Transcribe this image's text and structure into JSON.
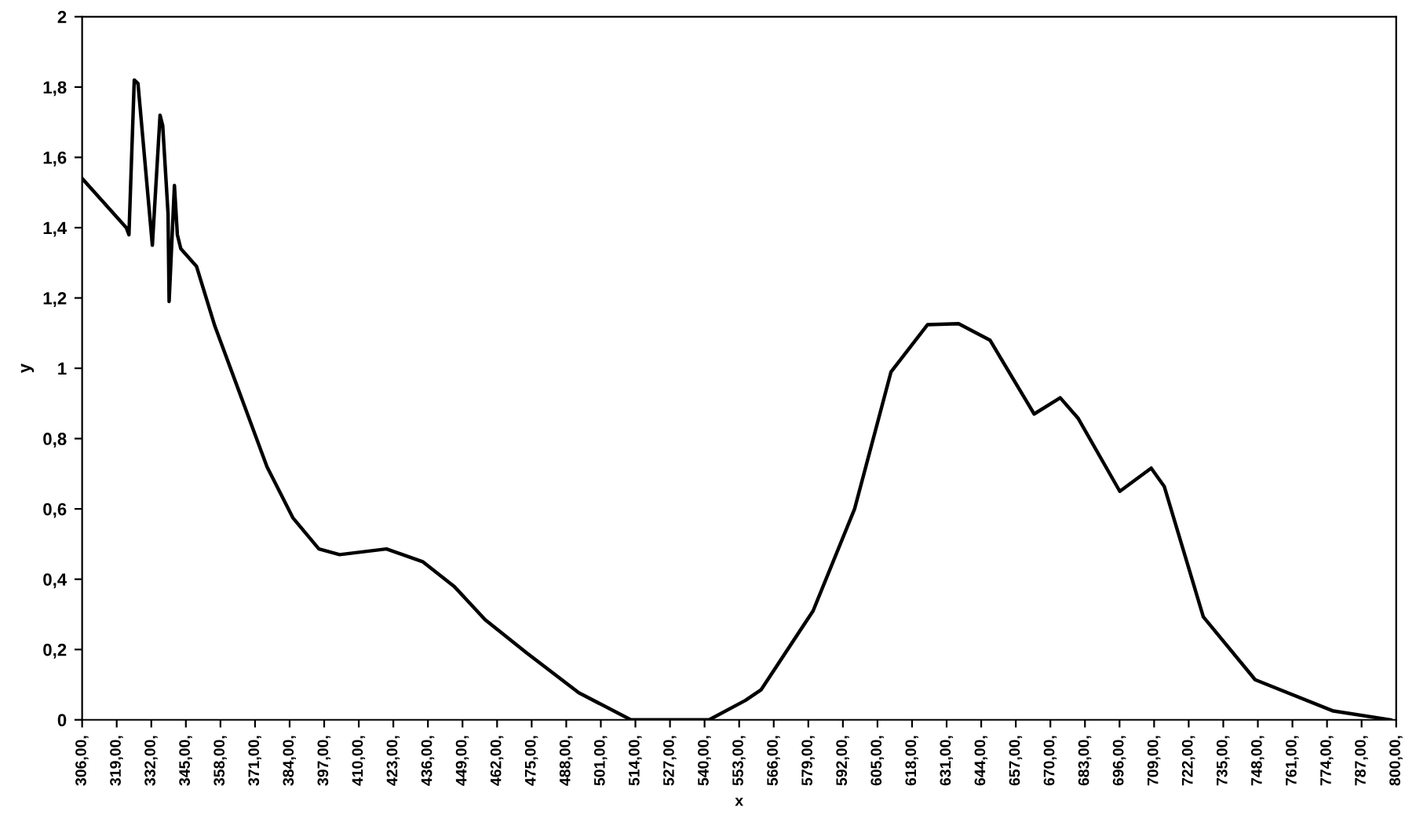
{
  "chart_data": {
    "type": "line",
    "xlabel": "x",
    "ylabel": "y",
    "series": [
      {
        "color": "#000000",
        "x": [
          306,
          322.6,
          323.6,
          325.6,
          327,
          332.4,
          335.3,
          336.3,
          338.3,
          338.7,
          340.7,
          341.8,
          343.1,
          349,
          355.9,
          365.7,
          375.5,
          385.2,
          395,
          402.8,
          420.4,
          434,
          445.8,
          457.5,
          473.2,
          492.7,
          512.3,
          531.9,
          541.7,
          555.3,
          561.2,
          580.8,
          596.4,
          610.1,
          623.8,
          635.5,
          647.3,
          663.9,
          673.7,
          680.5,
          696.1,
          707.9,
          712.8,
          727.5,
          747,
          776.4,
          797.9
        ],
        "values": [
          1.54,
          1.4,
          1.38,
          1.82,
          1.81,
          1.35,
          1.72,
          1.69,
          1.44,
          1.19,
          1.52,
          1.38,
          1.34,
          1.29,
          1.12,
          0.92,
          0.72,
          0.575,
          0.486,
          0.47,
          0.486,
          0.45,
          0.38,
          0.285,
          0.19,
          0.077,
          0,
          0,
          0,
          0.055,
          0.085,
          0.31,
          0.6,
          0.99,
          1.124,
          1.127,
          1.08,
          0.87,
          0.916,
          0.857,
          0.65,
          0.716,
          0.664,
          0.293,
          0.114,
          0.025,
          0
        ]
      }
    ],
    "xlim": [
      306,
      800
    ],
    "xticks": [
      {
        "value": 306,
        "label": "306,00,"
      },
      {
        "value": 319,
        "label": "319,00,"
      },
      {
        "value": 332,
        "label": "332,00,"
      },
      {
        "value": 345,
        "label": "345,00,"
      },
      {
        "value": 358,
        "label": "358,00,"
      },
      {
        "value": 371,
        "label": "371,00,"
      },
      {
        "value": 384,
        "label": "384,00,"
      },
      {
        "value": 397,
        "label": "397,00,"
      },
      {
        "value": 410,
        "label": "410,00,"
      },
      {
        "value": 423,
        "label": "423,00,"
      },
      {
        "value": 436,
        "label": "436,00,"
      },
      {
        "value": 449,
        "label": "449,00,"
      },
      {
        "value": 462,
        "label": "462,00,"
      },
      {
        "value": 475,
        "label": "475,00,"
      },
      {
        "value": 488,
        "label": "488,00,"
      },
      {
        "value": 501,
        "label": "501,00,"
      },
      {
        "value": 514,
        "label": "514,00,"
      },
      {
        "value": 527,
        "label": "527,00,"
      },
      {
        "value": 540,
        "label": "540,00,"
      },
      {
        "value": 553,
        "label": "553,00,"
      },
      {
        "value": 566,
        "label": "566,00,"
      },
      {
        "value": 579,
        "label": "579,00,"
      },
      {
        "value": 592,
        "label": "592,00,"
      },
      {
        "value": 605,
        "label": "605,00,"
      },
      {
        "value": 618,
        "label": "618,00,"
      },
      {
        "value": 631,
        "label": "631,00,"
      },
      {
        "value": 644,
        "label": "644,00,"
      },
      {
        "value": 657,
        "label": "657,00,"
      },
      {
        "value": 670,
        "label": "670,00,"
      },
      {
        "value": 683,
        "label": "683,00,"
      },
      {
        "value": 696,
        "label": "696,00,"
      },
      {
        "value": 709,
        "label": "709,00,"
      },
      {
        "value": 722,
        "label": "722,00,"
      },
      {
        "value": 735,
        "label": "735,00,"
      },
      {
        "value": 748,
        "label": "748,00,"
      },
      {
        "value": 761,
        "label": "761,00,"
      },
      {
        "value": 774,
        "label": "774,00,"
      },
      {
        "value": 787,
        "label": "787,00,"
      },
      {
        "value": 800,
        "label": "800,00,"
      }
    ],
    "ylim": [
      0,
      2
    ],
    "yticks": [
      0,
      {
        "value": 0.2,
        "label": "0,2"
      },
      {
        "value": 0.4,
        "label": "0,4"
      },
      {
        "value": 0.6,
        "label": "0,6"
      },
      {
        "value": 0.8,
        "label": "0,8"
      },
      1,
      {
        "value": 1.2,
        "label": "1,2"
      },
      {
        "value": 1.4,
        "label": "1,4"
      },
      {
        "value": 1.6,
        "label": "1,6"
      },
      {
        "value": 1.8,
        "label": "1,8"
      },
      2
    ],
    "grid": false,
    "legend": false
  }
}
